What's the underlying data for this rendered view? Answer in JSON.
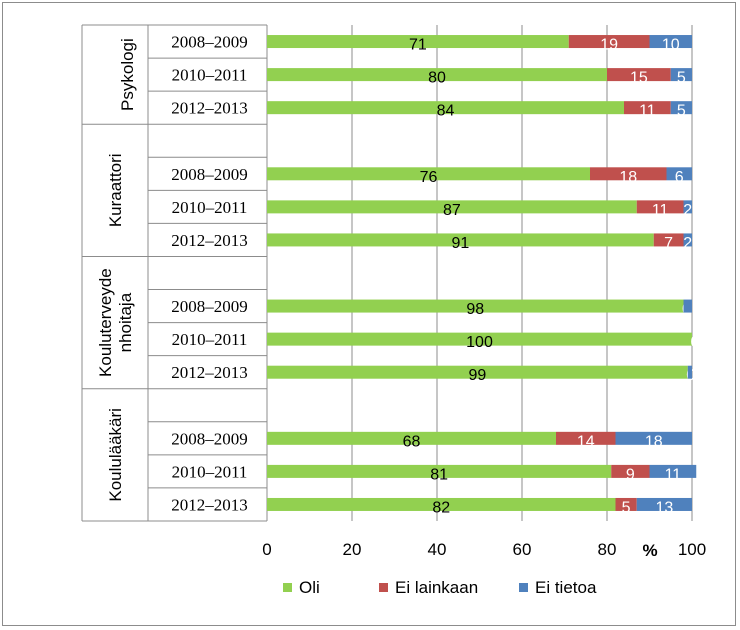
{
  "chart_data": {
    "type": "bar",
    "orientation": "horizontal",
    "stacked": true,
    "percent_symbol": "%",
    "x_ticks": [
      0,
      20,
      40,
      60,
      80,
      100
    ],
    "xlim": [
      0,
      100
    ],
    "grid": true,
    "legend_position": "bottom",
    "series": [
      {
        "name": "Oli",
        "color": "#92D050"
      },
      {
        "name": "Ei lainkaan",
        "color": "#C0504D"
      },
      {
        "name": "Ei tietoa",
        "color": "#4F81BD"
      }
    ],
    "groups": [
      {
        "name": "Psykologi",
        "name_lines": [
          "Psykologi"
        ],
        "rows": [
          {
            "label": "2008–2009",
            "values": [
              71,
              19,
              10
            ]
          },
          {
            "label": "2010–2011",
            "values": [
              80,
              15,
              5
            ]
          },
          {
            "label": "2012–2013",
            "values": [
              84,
              11,
              5
            ]
          }
        ]
      },
      {
        "name": "Kuraattori",
        "name_lines": [
          "Kuraattori"
        ],
        "rows": [
          {
            "label": "2008–2009",
            "values": [
              76,
              18,
              6
            ]
          },
          {
            "label": "2010–2011",
            "values": [
              87,
              11,
              2
            ]
          },
          {
            "label": "2012–2013",
            "values": [
              91,
              7,
              2
            ]
          }
        ]
      },
      {
        "name": "Kouluterveydenhoitaja",
        "name_lines": [
          "Kouluterveyde",
          "nhoitaja"
        ],
        "rows": [
          {
            "label": "2008–2009",
            "values": [
              98,
              0,
              2
            ]
          },
          {
            "label": "2010–2011",
            "values": [
              100,
              0,
              0
            ]
          },
          {
            "label": "2012–2013",
            "values": [
              99,
              0,
              1
            ]
          }
        ]
      },
      {
        "name": "Koululääkäri",
        "name_lines": [
          "Koululääkäri"
        ],
        "rows": [
          {
            "label": "2008–2009",
            "values": [
              68,
              14,
              18
            ]
          },
          {
            "label": "2010–2011",
            "values": [
              81,
              9,
              11
            ]
          },
          {
            "label": "2012–2013",
            "values": [
              82,
              5,
              13
            ]
          }
        ]
      }
    ],
    "data_labels": [
      [
        "71",
        "19",
        "10"
      ],
      [
        "80",
        "15",
        "5"
      ],
      [
        "84",
        "11",
        "5"
      ],
      [
        "76",
        "18",
        "6"
      ],
      [
        "87",
        "11",
        "2"
      ],
      [
        "91",
        "7",
        "2"
      ],
      [
        "98",
        "0",
        ""
      ],
      [
        "100",
        "0",
        ""
      ],
      [
        "99",
        "0",
        ""
      ],
      [
        "68",
        "14",
        "18"
      ],
      [
        "81",
        "9",
        "11"
      ],
      [
        "82",
        "5",
        "13"
      ]
    ]
  }
}
